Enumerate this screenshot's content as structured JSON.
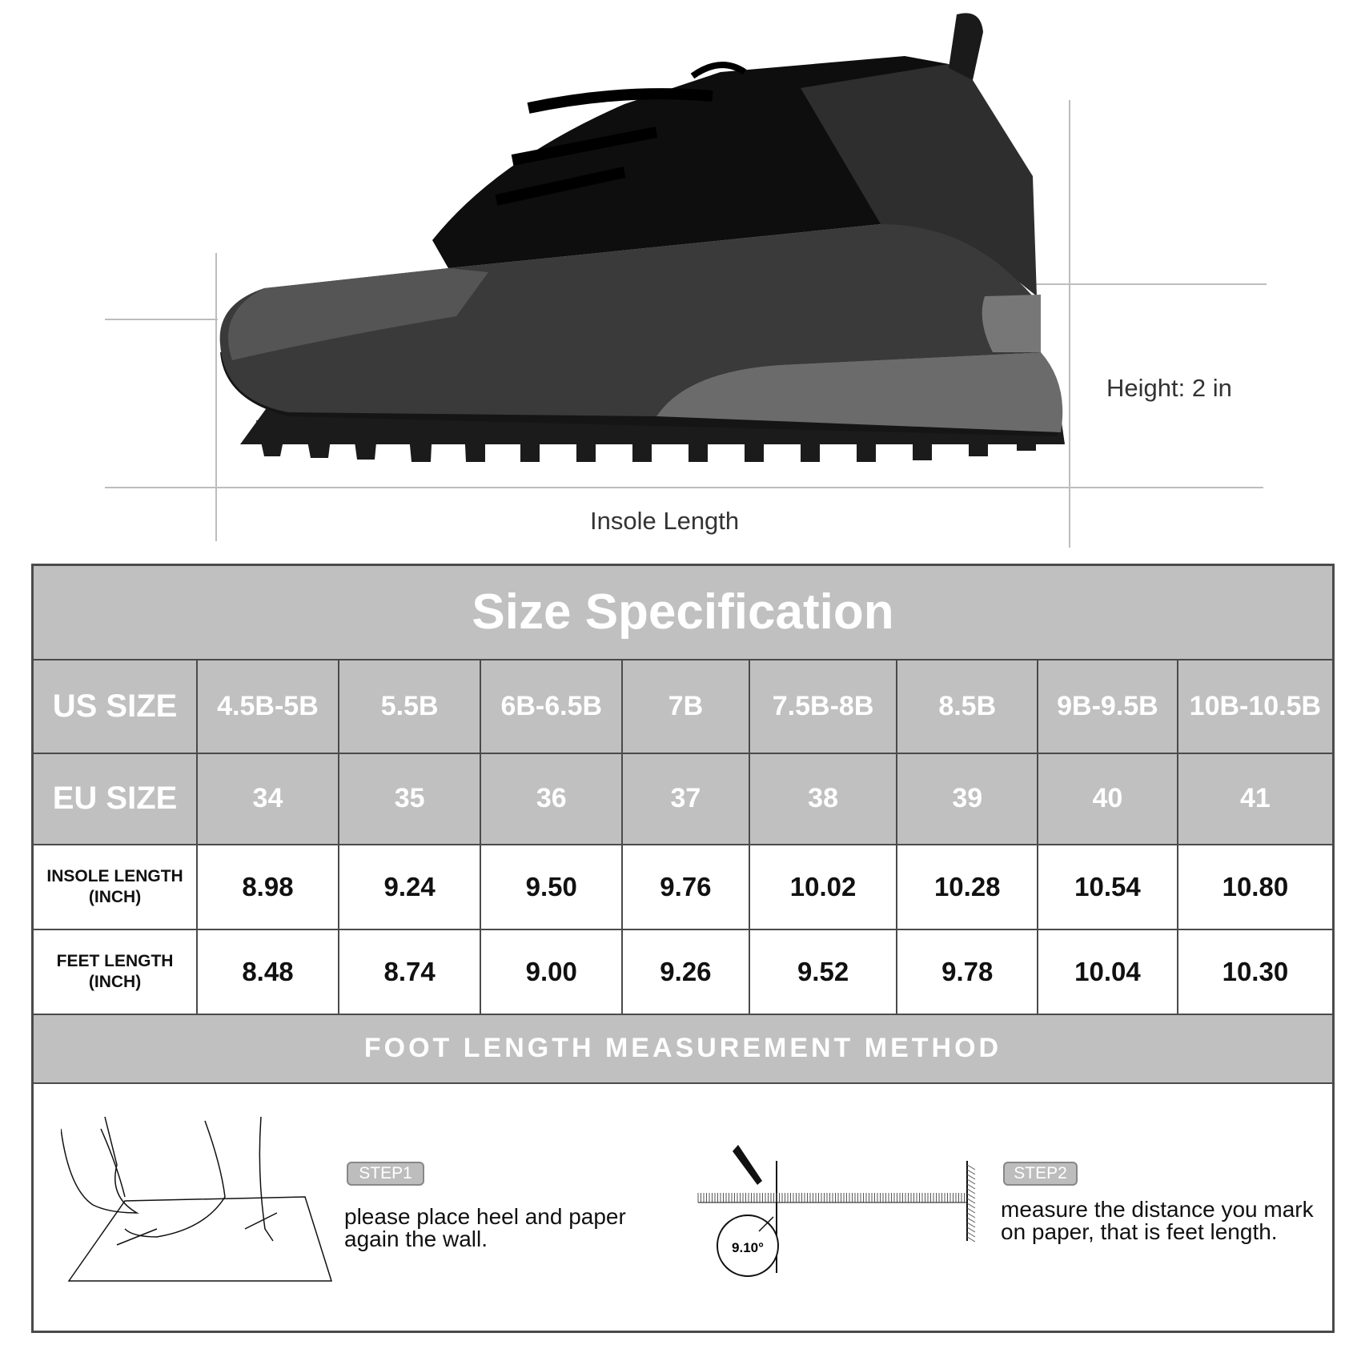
{
  "dimensions": {
    "height_label": "Height: 2 in",
    "insole_label": "Insole Length"
  },
  "table": {
    "title": "Size Specification",
    "us": {
      "label": "US SIZE",
      "values": [
        "4.5B-5B",
        "5.5B",
        "6B-6.5B",
        "7B",
        "7.5B-8B",
        "8.5B",
        "9B-9.5B",
        "10B-10.5B"
      ]
    },
    "eu": {
      "label": "EU SIZE",
      "values": [
        "34",
        "35",
        "36",
        "37",
        "38",
        "39",
        "40",
        "41"
      ]
    },
    "insole": {
      "label1": "INSOLE LENGTH",
      "label2": "(INCH)",
      "values": [
        "8.98",
        "9.24",
        "9.50",
        "9.76",
        "10.02",
        "10.28",
        "10.54",
        "10.80"
      ]
    },
    "feet": {
      "label1": "FEET LENGTH",
      "label2": "(INCH)",
      "values": [
        "8.48",
        "8.74",
        "9.00",
        "9.26",
        "9.52",
        "9.78",
        "10.04",
        "10.30"
      ]
    },
    "method_title": "FOOT LENGTH MEASUREMENT METHOD"
  },
  "method": {
    "step1": {
      "badge": "STEP1",
      "line1": "please place heel and paper",
      "line2": "again the wall."
    },
    "step2": {
      "badge": "STEP2",
      "line1": "measure the distance you mark",
      "line2": "on paper,  that is feet length."
    },
    "angle": "9.10°"
  }
}
